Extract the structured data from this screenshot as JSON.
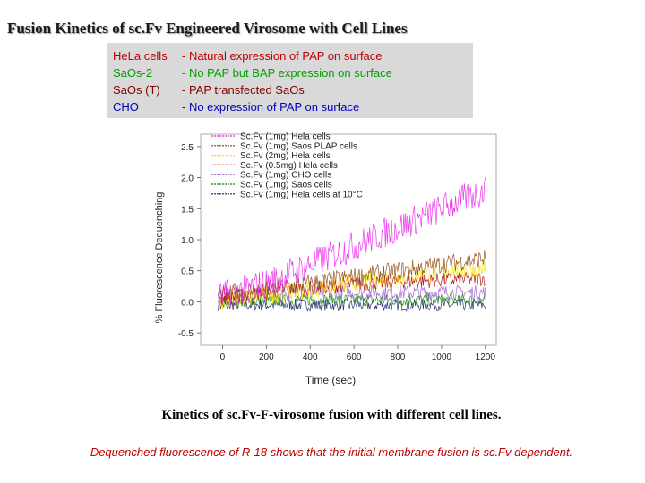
{
  "title": "Fusion Kinetics of sc.Fv Engineered Virosome with Cell Lines",
  "cell_lines": [
    {
      "name": "HeLa cells",
      "desc": "-  Natural expression of PAP on surface",
      "color": "#c00000"
    },
    {
      "name": "SaOs-2",
      "desc": "-  No PAP but BAP expression on surface",
      "color": "#00a000"
    },
    {
      "name": "SaOs (T)",
      "desc": "-  PAP transfected SaOs",
      "color": "#7f0000"
    },
    {
      "name": "CHO",
      "desc": "-  No expression of PAP on surface",
      "color": "#0000c0"
    }
  ],
  "caption": "Kinetics of sc.Fv-F-virosome fusion with different cell lines.",
  "note": "Dequenched fluorescence of R-18 shows that the initial membrane fusion is sc.Fv dependent.",
  "chart_data": {
    "type": "line",
    "title": "",
    "xlabel": "Time (sec)",
    "ylabel": "% Fluorescence Dequenching",
    "xlim": [
      -100,
      1250
    ],
    "ylim": [
      -0.7,
      2.7
    ],
    "xticks": [
      0,
      200,
      400,
      600,
      800,
      1000,
      1200
    ],
    "yticks": [
      -0.5,
      0.0,
      0.5,
      1.0,
      1.5,
      2.0,
      2.5
    ],
    "xtick_labels": [
      "0",
      "200",
      "400",
      "600",
      "800",
      "1000",
      "1200"
    ],
    "ytick_labels": [
      "-0.5",
      "0.0",
      "0.5",
      "1.0",
      "1.5",
      "2.0",
      "2.5"
    ],
    "series": [
      {
        "name": "Sc.Fv (1mg) Hela cells",
        "color": "#ee22ee",
        "x": [
          0,
          100,
          200,
          300,
          400,
          500,
          600,
          700,
          800,
          900,
          1000,
          1100,
          1200
        ],
        "values": [
          0.1,
          0.2,
          0.3,
          0.45,
          0.6,
          0.75,
          0.9,
          1.05,
          1.2,
          1.35,
          1.5,
          1.65,
          1.8
        ],
        "noise": 0.25
      },
      {
        "name": "Sc.Fv (1mg) Saos PLAP cells",
        "color": "#8b4513",
        "x": [
          0,
          100,
          200,
          300,
          400,
          500,
          600,
          700,
          800,
          900,
          1000,
          1100,
          1200
        ],
        "values": [
          0.1,
          0.15,
          0.2,
          0.25,
          0.3,
          0.35,
          0.4,
          0.45,
          0.5,
          0.55,
          0.6,
          0.65,
          0.7
        ],
        "noise": 0.15
      },
      {
        "name": "Sc.Fv (2mg) Hela cells",
        "color": "#f5e400",
        "x": [
          0,
          100,
          200,
          300,
          400,
          500,
          600,
          700,
          800,
          900,
          1000,
          1100,
          1200
        ],
        "values": [
          0.0,
          0.05,
          0.1,
          0.15,
          0.2,
          0.25,
          0.3,
          0.35,
          0.4,
          0.45,
          0.5,
          0.52,
          0.55
        ],
        "noise": 0.15
      },
      {
        "name": "Sc.Fv (0.5mg) Hela cells",
        "color": "#b00000",
        "x": [
          0,
          100,
          200,
          300,
          400,
          500,
          600,
          700,
          800,
          900,
          1000,
          1100,
          1200
        ],
        "values": [
          0.05,
          0.1,
          0.15,
          0.2,
          0.22,
          0.25,
          0.28,
          0.3,
          0.32,
          0.34,
          0.35,
          0.36,
          0.38
        ],
        "noise": 0.12
      },
      {
        "name": "Sc.Fv (1mg) CHO cells",
        "color": "#9b59d0",
        "x": [
          0,
          100,
          200,
          300,
          400,
          500,
          600,
          700,
          800,
          900,
          1000,
          1100,
          1200
        ],
        "values": [
          0.1,
          0.1,
          0.12,
          0.12,
          0.15,
          0.15,
          0.15,
          0.15,
          0.15,
          0.15,
          0.15,
          0.15,
          0.15
        ],
        "noise": 0.12
      },
      {
        "name": "Sc.Fv (1mg) Saos cells",
        "color": "#0a8a0a",
        "x": [
          0,
          100,
          200,
          300,
          400,
          500,
          600,
          700,
          800,
          900,
          1000,
          1100,
          1200
        ],
        "values": [
          0.0,
          0.0,
          0.02,
          0.02,
          0.03,
          0.03,
          0.03,
          0.03,
          0.03,
          0.03,
          0.03,
          0.03,
          0.03
        ],
        "noise": 0.1
      },
      {
        "name": "Sc.Fv (1mg) Hela cells at 10°C",
        "color": "#1a1a66",
        "x": [
          0,
          100,
          200,
          300,
          400,
          500,
          600,
          700,
          800,
          900,
          1000,
          1100,
          1200
        ],
        "values": [
          -0.05,
          -0.05,
          -0.05,
          -0.05,
          -0.05,
          -0.05,
          -0.05,
          -0.05,
          -0.05,
          -0.05,
          -0.05,
          -0.05,
          -0.05
        ],
        "noise": 0.1
      }
    ]
  }
}
